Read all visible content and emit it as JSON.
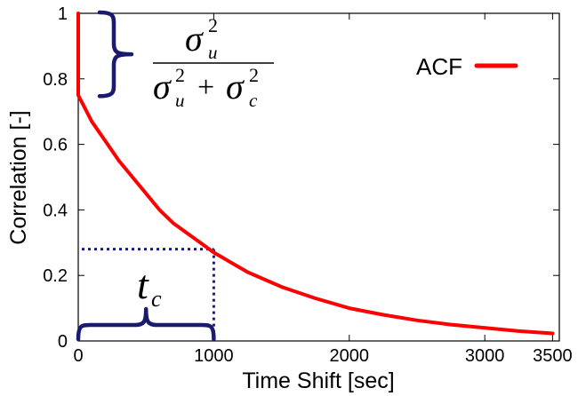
{
  "chart_data": {
    "type": "line",
    "xlabel": "Time Shift [sec]",
    "ylabel": "Correlation [-]",
    "xlim": [
      0,
      3550
    ],
    "ylim": [
      0,
      1
    ],
    "x_ticks": [
      "0",
      "1000",
      "2000",
      "3000",
      "3500"
    ],
    "y_ticks": [
      "0",
      "0.2",
      "0.4",
      "0.6",
      "0.8",
      "1"
    ],
    "grid": false,
    "legend_position": "top-right",
    "series": [
      {
        "name": "ACF",
        "color": "#ff0000",
        "x": [
          0,
          0,
          100,
          200,
          300,
          400,
          500,
          600,
          700,
          800,
          900,
          1000,
          1250,
          1500,
          1750,
          2000,
          2250,
          2500,
          2750,
          3000,
          3250,
          3500
        ],
        "y": [
          1,
          0.75,
          0.67,
          0.61,
          0.55,
          0.5,
          0.45,
          0.4,
          0.36,
          0.33,
          0.3,
          0.27,
          0.21,
          0.165,
          0.13,
          0.1,
          0.08,
          0.063,
          0.05,
          0.04,
          0.03,
          0.023
        ]
      }
    ],
    "annotations": {
      "variance_ratio": {
        "numerator": "σ",
        "numerator_sub": "u",
        "numerator_sup": "2",
        "denominator_left": "σ",
        "denominator_left_sub": "u",
        "denominator_left_sup": "2",
        "plus": "+",
        "denominator_right": "σ",
        "denominator_right_sub": "c",
        "denominator_right_sup": "2",
        "brace_color": "#1a1a6e"
      },
      "correlation_time": {
        "label": "t",
        "label_sub": "c",
        "x": 1000,
        "y": 0.28,
        "line_color": "#1a1a8e"
      }
    }
  }
}
